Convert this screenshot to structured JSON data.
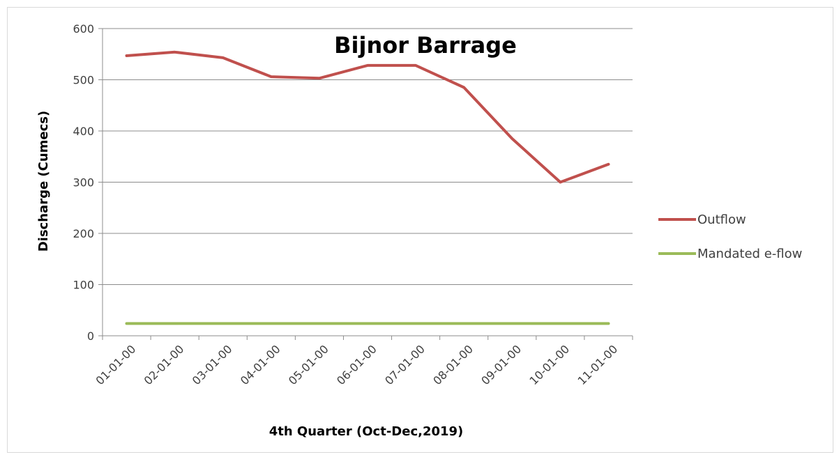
{
  "chart_data": {
    "type": "line",
    "title": "Bijnor Barrage",
    "xlabel": "4th Quarter (Oct-Dec,2019)",
    "ylabel": "Discharge (Cumecs)",
    "categories": [
      "01-01-00",
      "02-01-00",
      "03-01-00",
      "04-01-00",
      "05-01-00",
      "06-01-00",
      "07-01-00",
      "08-01-00",
      "09-01-00",
      "10-01-00",
      "11-01-00"
    ],
    "yticks": [
      "0",
      "100",
      "200",
      "300",
      "400",
      "500",
      "600"
    ],
    "ylim": [
      0,
      600
    ],
    "grid": true,
    "legend_position": "right",
    "series": [
      {
        "name": "Outflow",
        "color": "#c0504d",
        "values": [
          547,
          554,
          543,
          506,
          503,
          528,
          528,
          485,
          385,
          300,
          335
        ]
      },
      {
        "name": "Mandated e-flow",
        "color": "#9bbb59",
        "values": [
          24,
          24,
          24,
          24,
          24,
          24,
          24,
          24,
          24,
          24,
          24
        ]
      }
    ]
  }
}
